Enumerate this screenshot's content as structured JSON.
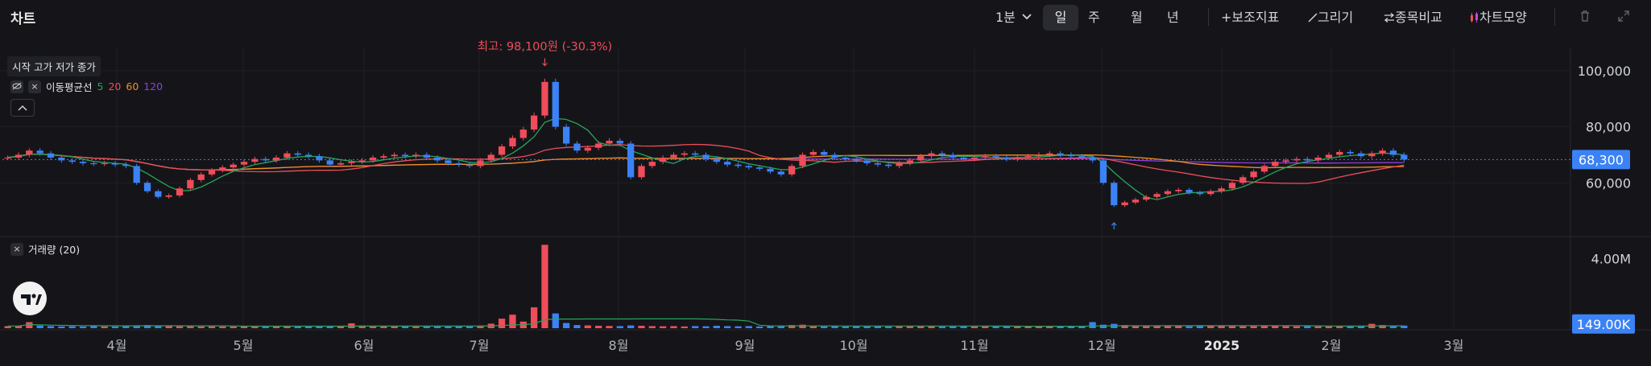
{
  "topbar": {
    "title": "차트",
    "interval_label": "1분",
    "periods": [
      "일",
      "주",
      "월",
      "년"
    ],
    "active_period": "일",
    "tools": [
      {
        "icon": "plus-icon",
        "label": "보조지표"
      },
      {
        "icon": "pencil-icon",
        "label": "그리기"
      },
      {
        "icon": "compare-icon",
        "label": "종목비교"
      },
      {
        "icon": "candle-icon",
        "label": "차트모양"
      }
    ],
    "trash_icon": "trash-icon",
    "expand_icon": "expand-icon"
  },
  "legend": {
    "ohlc_label": "시작 고가 저가 종가",
    "ma_label": "이동평균선",
    "ma_periods": [
      {
        "value": "5",
        "color": "#26a65b"
      },
      {
        "value": "20",
        "color": "#ef4d5a"
      },
      {
        "value": "60",
        "color": "#f5901e"
      },
      {
        "value": "120",
        "color": "#8e3ed8"
      }
    ],
    "volume_label": "거래량 (20)"
  },
  "colors": {
    "up": "#ef4d5a",
    "down": "#3b82f6",
    "ma5": "#26a65b",
    "ma20": "#ef4d5a",
    "ma60": "#f5901e",
    "ma120": "#8e3ed8",
    "price_tag": "#3b82f6"
  },
  "chart_data": {
    "type": "candlestick",
    "x_labels": [
      "4월",
      "5월",
      "6월",
      "7월",
      "8월",
      "9월",
      "10월",
      "11월",
      "12월",
      "2025",
      "2월",
      "3월"
    ],
    "y_ticks": [
      "100,000",
      "80,000",
      "60,000"
    ],
    "ylim": [
      42000,
      108000
    ],
    "volume_ticks": [
      "4.00M"
    ],
    "last_price": 68300,
    "last_price_label": "68,300",
    "last_volume_label": "149.00K",
    "high_annotation": "최고: 98,100원 (-30.3%)",
    "high_value": 98100,
    "low_marker": true,
    "close_series": [
      69000,
      70000,
      71500,
      70500,
      69000,
      68000,
      67500,
      67000,
      66800,
      67000,
      66500,
      66000,
      60000,
      57000,
      55000,
      55500,
      58000,
      61000,
      63000,
      64500,
      65500,
      66500,
      67500,
      68500,
      68000,
      69000,
      70500,
      70000,
      69500,
      68000,
      66500,
      67000,
      67500,
      68000,
      69000,
      69500,
      70000,
      69500,
      70000,
      69000,
      68000,
      67000,
      66500,
      66000,
      68000,
      70000,
      73000,
      76000,
      79000,
      84000,
      96000,
      80000,
      74000,
      71500,
      72500,
      74000,
      75000,
      74000,
      62000,
      66000,
      67500,
      69000,
      70000,
      70500,
      70000,
      68500,
      67500,
      66500,
      66000,
      65500,
      65000,
      64000,
      63000,
      66000,
      70000,
      71000,
      70000,
      69000,
      68500,
      68000,
      67000,
      66500,
      66000,
      67000,
      68000,
      69500,
      70500,
      70000,
      69000,
      68500,
      69000,
      69500,
      69000,
      68500,
      69000,
      69500,
      70000,
      70500,
      70000,
      69500,
      69000,
      68000,
      60000,
      52000,
      53000,
      54000,
      55000,
      56000,
      57000,
      57500,
      56500,
      56000,
      57000,
      58000,
      60000,
      62000,
      64000,
      66000,
      67500,
      68000,
      68500,
      68000,
      69000,
      70000,
      71000,
      70500,
      69500,
      70500,
      71500,
      70000,
      68300
    ],
    "volume_series": [
      0.12,
      0.14,
      0.35,
      0.15,
      0.12,
      0.1,
      0.11,
      0.1,
      0.12,
      0.1,
      0.1,
      0.12,
      0.16,
      0.18,
      0.13,
      0.12,
      0.11,
      0.12,
      0.1,
      0.11,
      0.1,
      0.1,
      0.1,
      0.12,
      0.1,
      0.11,
      0.12,
      0.1,
      0.12,
      0.11,
      0.13,
      0.1,
      0.28,
      0.15,
      0.12,
      0.11,
      0.13,
      0.11,
      0.12,
      0.1,
      0.11,
      0.1,
      0.1,
      0.12,
      0.15,
      0.26,
      0.55,
      0.78,
      0.38,
      1.2,
      4.8,
      0.85,
      0.3,
      0.18,
      0.16,
      0.14,
      0.13,
      0.12,
      0.16,
      0.14,
      0.12,
      0.11,
      0.12,
      0.1,
      0.12,
      0.11,
      0.14,
      0.12,
      0.11,
      0.12,
      0.1,
      0.12,
      0.14,
      0.18,
      0.2,
      0.12,
      0.11,
      0.12,
      0.1,
      0.12,
      0.11,
      0.12,
      0.1,
      0.11,
      0.12,
      0.14,
      0.12,
      0.1,
      0.11,
      0.12,
      0.1,
      0.12,
      0.11,
      0.12,
      0.1,
      0.11,
      0.1,
      0.12,
      0.11,
      0.1,
      0.12,
      0.35,
      0.2,
      0.25,
      0.18,
      0.15,
      0.13,
      0.12,
      0.14,
      0.12,
      0.11,
      0.12,
      0.13,
      0.12,
      0.12,
      0.11,
      0.12,
      0.13,
      0.14,
      0.12,
      0.11,
      0.12,
      0.11,
      0.12,
      0.13,
      0.12,
      0.14,
      0.25,
      0.18,
      0.15,
      0.149
    ]
  }
}
